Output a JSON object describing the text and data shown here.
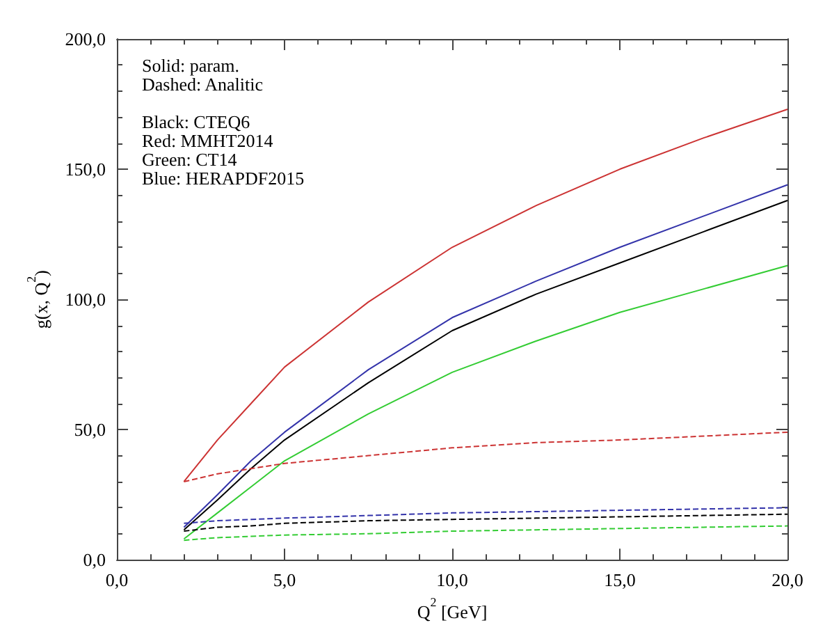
{
  "chart_data": {
    "type": "line",
    "xlabel": "Q$^{2}$ [GeV]",
    "ylabel": "g(x, Q$^{2}$)",
    "x": [
      2,
      3,
      4,
      5,
      7.5,
      10,
      12.5,
      15,
      17.5,
      20
    ],
    "xlim": [
      0,
      20
    ],
    "xticks": [
      {
        "value": 0,
        "label": "0,0"
      },
      {
        "value": 5,
        "label": "5,0"
      },
      {
        "value": 10,
        "label": "10,0"
      },
      {
        "value": 15,
        "label": "15,0"
      },
      {
        "value": 20,
        "label": "20,0"
      }
    ],
    "ylim": [
      0,
      200
    ],
    "yticks": [
      {
        "value": 0,
        "label": "0,0"
      },
      {
        "value": 50,
        "label": "50,0"
      },
      {
        "value": 100,
        "label": "100,0"
      },
      {
        "value": 150,
        "label": "150,0"
      },
      {
        "value": 200,
        "label": "200,0"
      }
    ],
    "grid": false,
    "marker": "none",
    "annotations": [
      "Solid: param.\nDashed: Analitic",
      "Black: CTEQ6\nRed: MMHT2014\nGreen: CT14\nBlue: HERAPDF2015"
    ],
    "series": [
      {
        "color": "#cc3333",
        "line_style": "solid",
        "values": [
          30,
          46,
          60,
          74,
          99,
          120,
          136,
          150,
          162,
          173
        ]
      },
      {
        "color": "#3333aa",
        "line_style": "solid",
        "values": [
          12.5,
          25,
          38,
          49,
          73,
          93,
          107,
          120,
          132,
          144
        ]
      },
      {
        "color": "#000000",
        "line_style": "solid",
        "values": [
          11.5,
          23,
          35,
          46,
          68,
          88,
          102,
          114,
          126,
          138
        ]
      },
      {
        "color": "#33cc33",
        "line_style": "solid",
        "values": [
          8,
          18,
          28,
          38,
          56,
          72,
          84,
          95,
          104,
          113
        ]
      },
      {
        "color": "#cc3333",
        "line_style": "dashed",
        "values": [
          30,
          33,
          35,
          37,
          40,
          43,
          45,
          46,
          47.5,
          49
        ]
      },
      {
        "color": "#3333aa",
        "line_style": "dashed",
        "values": [
          14,
          15,
          15.5,
          16,
          17,
          18,
          18.5,
          19,
          19.5,
          20
        ]
      },
      {
        "color": "#000000",
        "line_style": "dashed",
        "values": [
          11,
          12.5,
          13,
          14,
          15,
          15.5,
          16,
          16.5,
          17,
          17.5
        ]
      },
      {
        "color": "#33cc33",
        "line_style": "dashed",
        "values": [
          7.5,
          8.5,
          9,
          9.5,
          10,
          11,
          11.5,
          12,
          12.5,
          13
        ]
      }
    ]
  }
}
